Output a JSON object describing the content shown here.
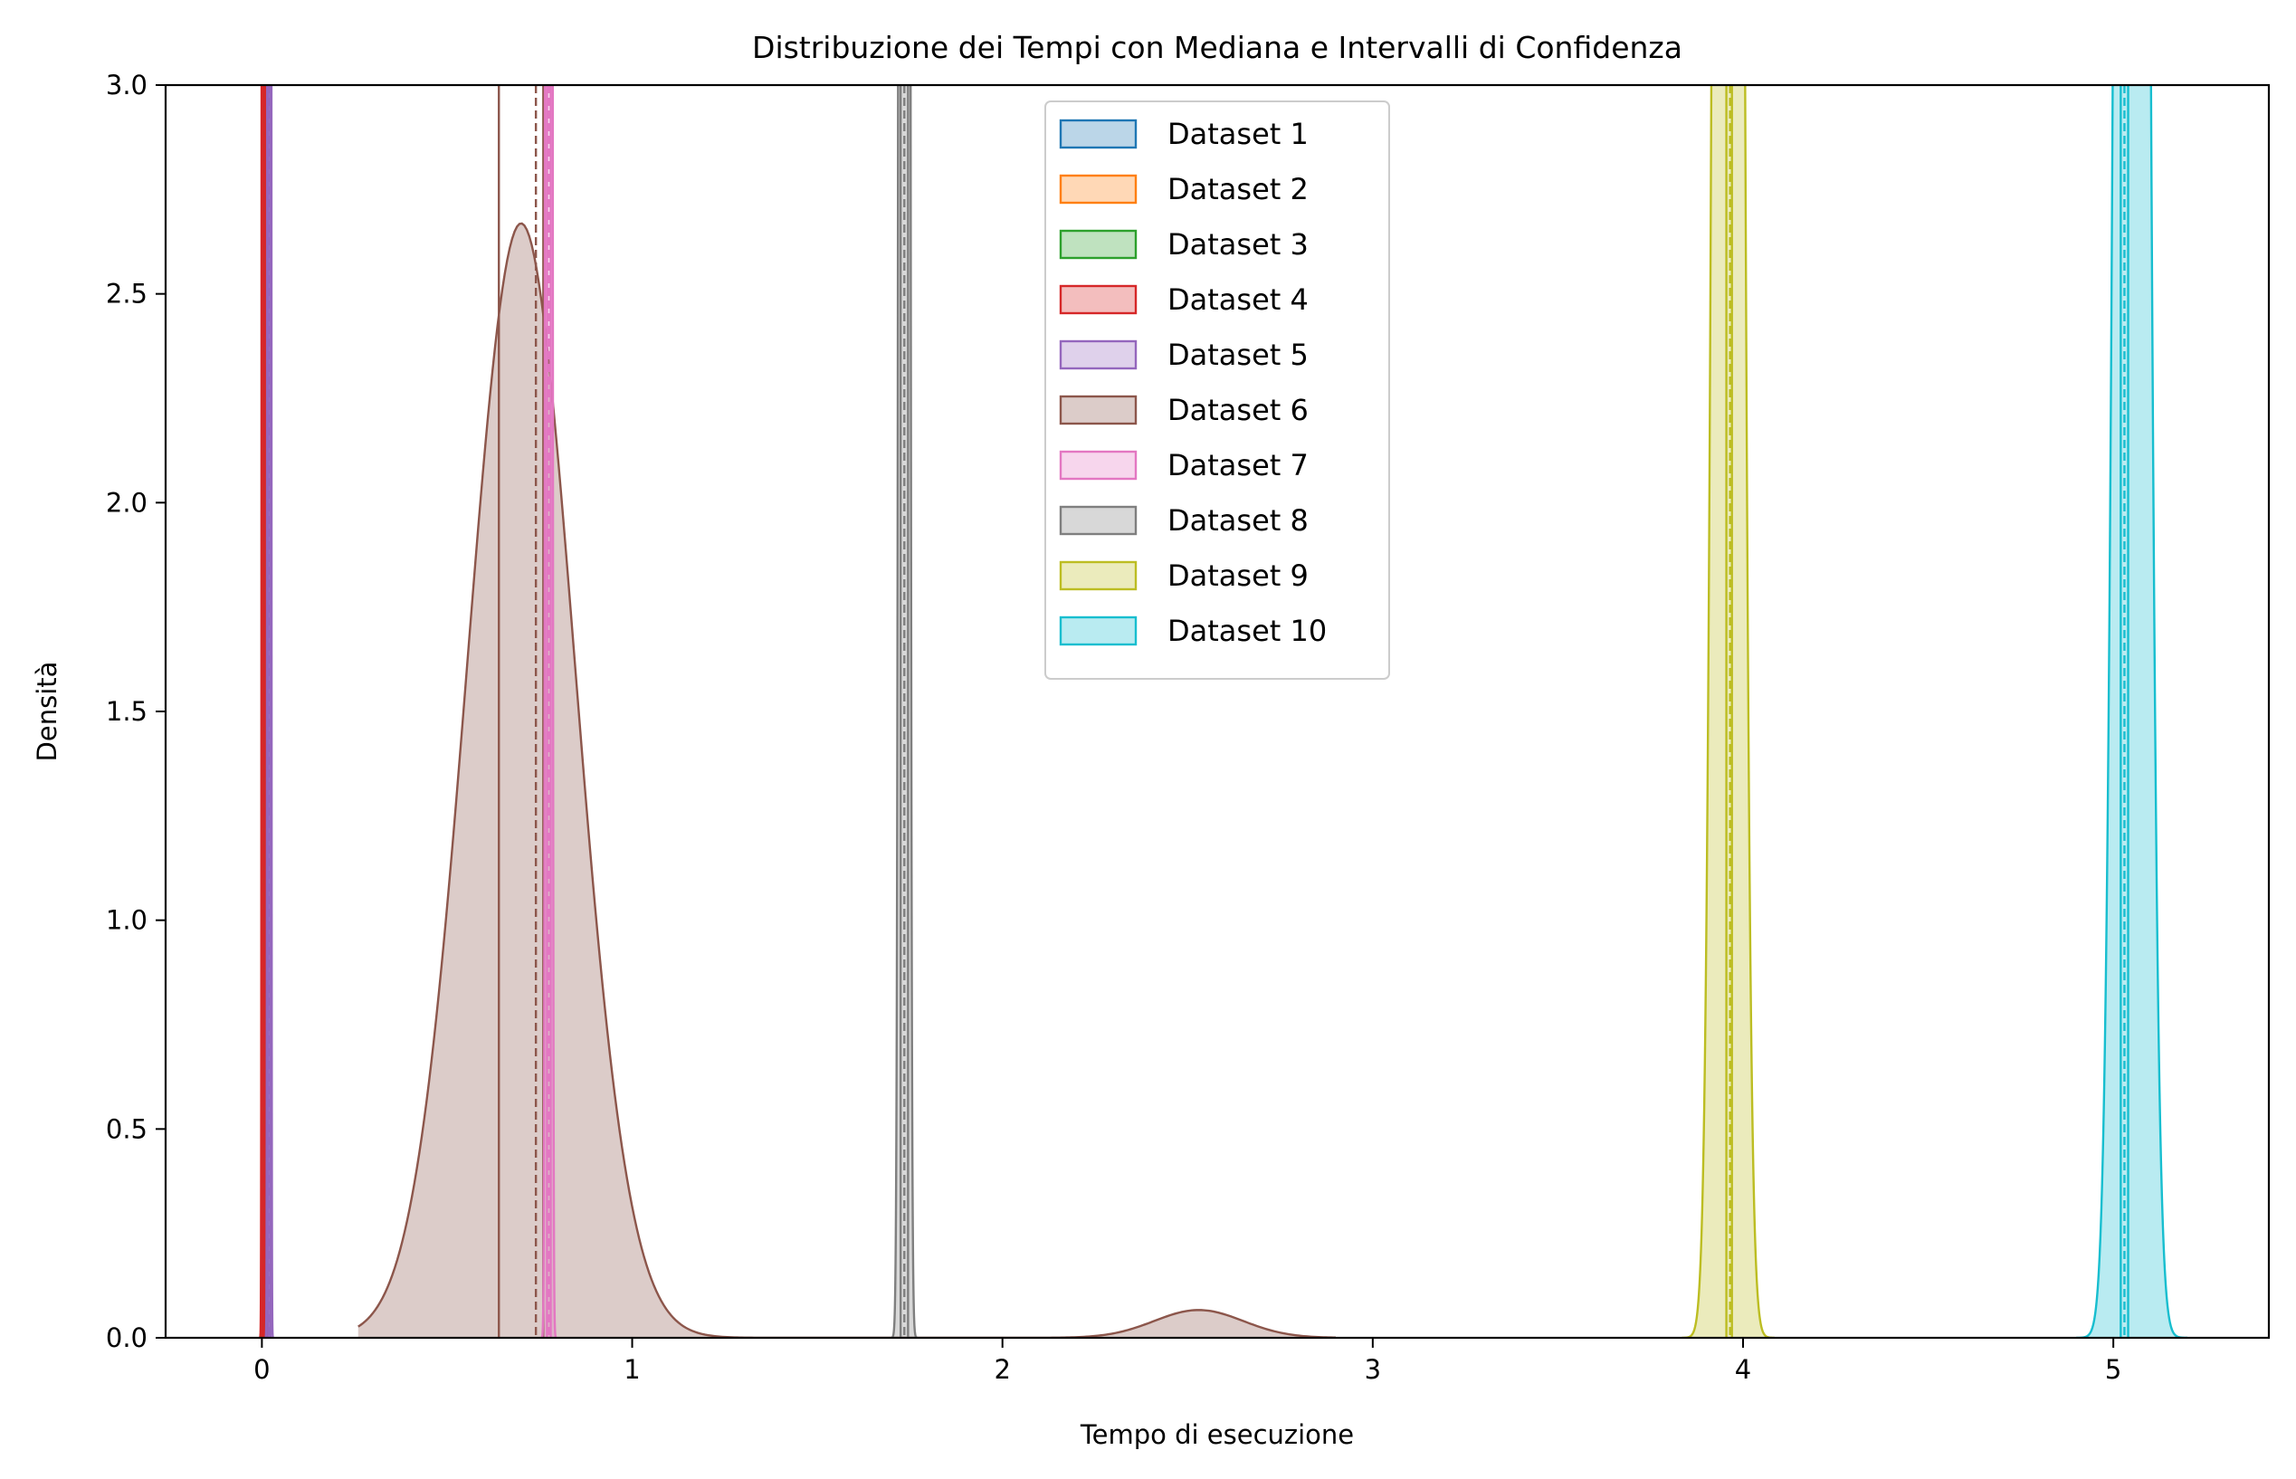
{
  "chart_data": {
    "type": "area",
    "title": "Distribuzione dei Tempi con Mediana e Intervalli di Confidenza",
    "xlabel": "Tempo di esecuzione",
    "ylabel": "Densità",
    "xlim": [
      -0.26,
      5.42
    ],
    "ylim": [
      0,
      3.0
    ],
    "x_ticks": [
      0,
      1,
      2,
      3,
      4,
      5
    ],
    "x_tick_labels": [
      "0",
      "1",
      "2",
      "3",
      "4",
      "5"
    ],
    "y_ticks": [
      0,
      0.5,
      1.0,
      1.5,
      2.0,
      2.5,
      3.0
    ],
    "y_tick_labels": [
      "0.0",
      "0.5",
      "1.0",
      "1.5",
      "2.0",
      "2.5",
      "3.0"
    ],
    "grid": false,
    "legend": "top-center",
    "series": [
      {
        "name": "Dataset 1",
        "color": "#1f77b4",
        "components": [
          {
            "mean": 0.004,
            "sd": 0.0015,
            "weight": 1
          }
        ],
        "median": 0.004,
        "ci": [
          0.002,
          0.006
        ]
      },
      {
        "name": "Dataset 2",
        "color": "#ff7f0e",
        "components": [
          {
            "mean": 0.008,
            "sd": 0.0015,
            "weight": 1
          }
        ],
        "median": 0.008,
        "ci": [
          0.006,
          0.01
        ]
      },
      {
        "name": "Dataset 3",
        "color": "#2ca02c",
        "components": [
          {
            "mean": 0.006,
            "sd": 0.0015,
            "weight": 1
          }
        ],
        "median": 0.006,
        "ci": [
          0.004,
          0.008
        ]
      },
      {
        "name": "Dataset 4",
        "color": "#d62728",
        "components": [
          {
            "mean": 0.005,
            "sd": 0.002,
            "weight": 1
          }
        ],
        "median": 0.005,
        "ci": [
          0.002,
          0.008
        ]
      },
      {
        "name": "Dataset 5",
        "color": "#9467bd",
        "components": [
          {
            "mean": 0.02,
            "sd": 0.002,
            "weight": 1
          }
        ],
        "median": 0.02,
        "ci": [
          0.017,
          0.023
        ]
      },
      {
        "name": "Dataset 6",
        "color": "#8c564b",
        "components": [
          {
            "mean": 0.7,
            "sd": 0.145,
            "weight": 0.97
          },
          {
            "mean": 2.53,
            "sd": 0.12,
            "weight": 0.02
          }
        ],
        "median": 0.74,
        "ci": [
          0.64,
          0.76
        ],
        "range": [
          0.26,
          2.9
        ]
      },
      {
        "name": "Dataset 7",
        "color": "#e377c2",
        "components": [
          {
            "mean": 0.775,
            "sd": 0.004,
            "weight": 1
          }
        ],
        "median": 0.775,
        "ci": [
          0.77,
          0.78
        ]
      },
      {
        "name": "Dataset 8",
        "color": "#7f7f7f",
        "components": [
          {
            "mean": 1.735,
            "sd": 0.007,
            "weight": 1
          }
        ],
        "median": 1.735,
        "ci": [
          1.725,
          1.745
        ]
      },
      {
        "name": "Dataset 9",
        "color": "#bcbd22",
        "components": [
          {
            "mean": 3.96,
            "sd": 0.025,
            "weight": 1
          }
        ],
        "median": 3.965,
        "ci": [
          3.955,
          3.97
        ]
      },
      {
        "name": "Dataset 10",
        "color": "#17becf",
        "components": [
          {
            "mean": 5.05,
            "sd": 0.03,
            "weight": 1
          }
        ],
        "median": 5.03,
        "ci": [
          5.02,
          5.04
        ]
      }
    ]
  }
}
